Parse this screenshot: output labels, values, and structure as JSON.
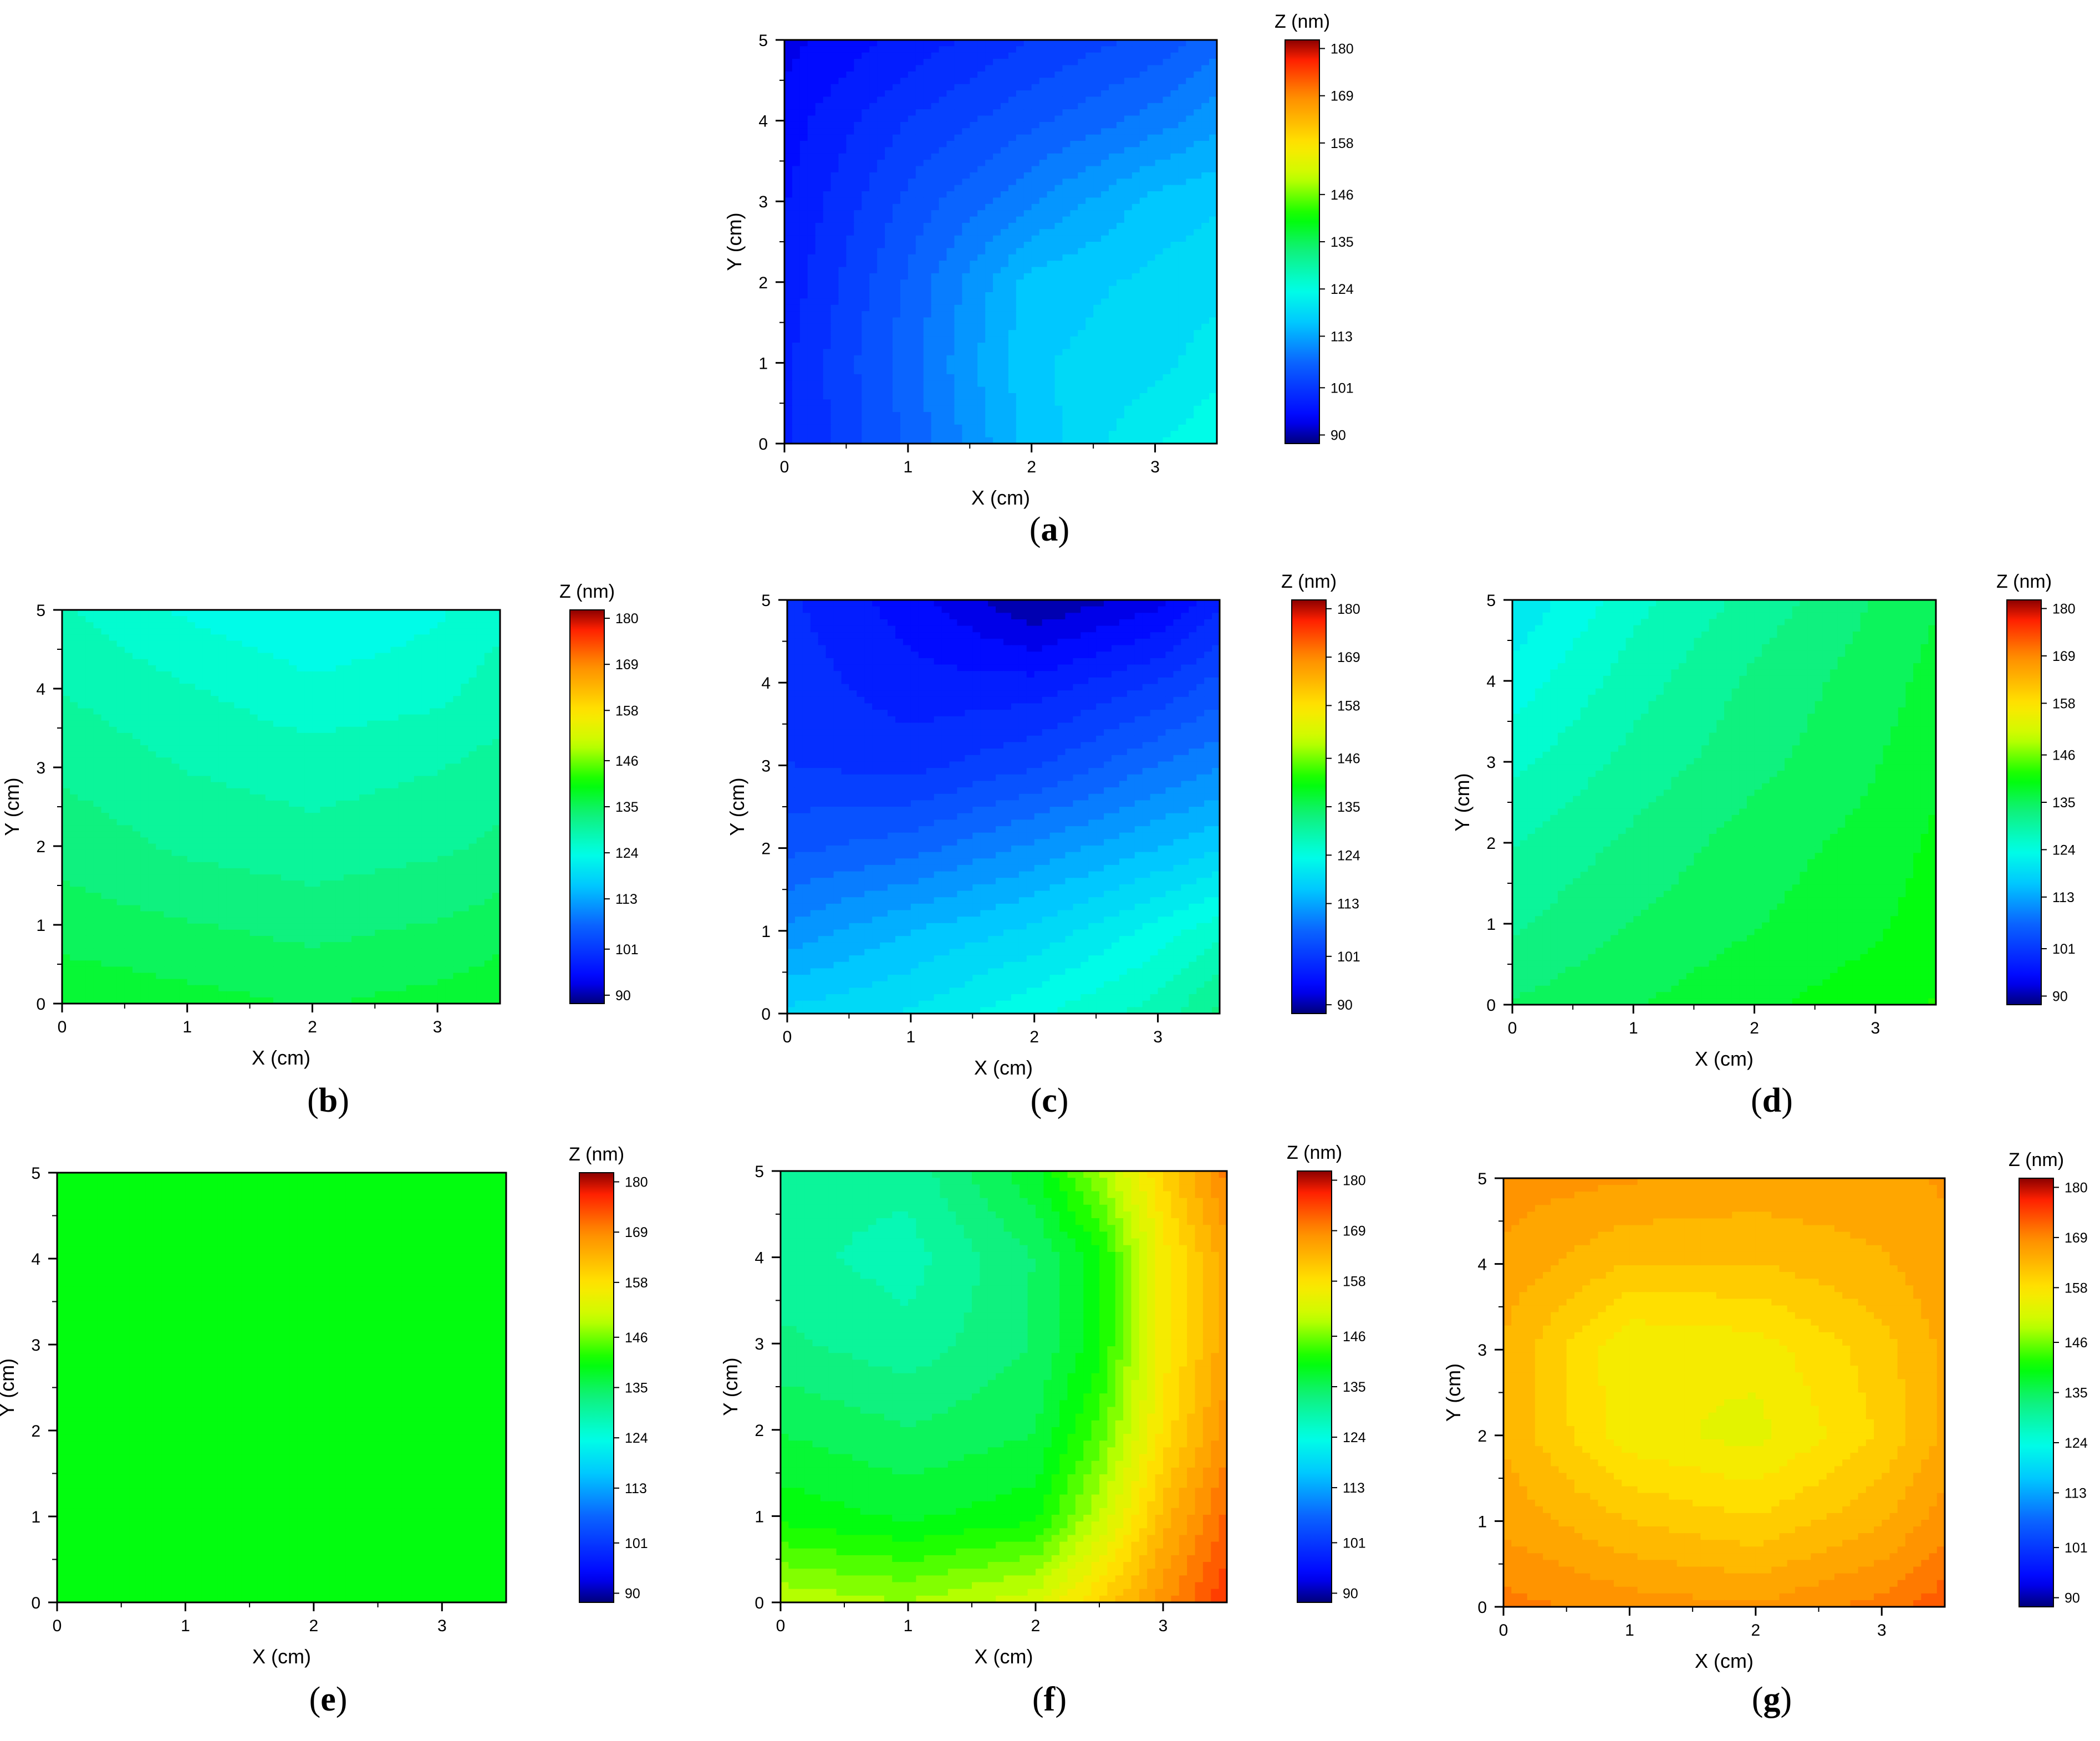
{
  "figure": {
    "panels": [
      "a",
      "b",
      "c",
      "d",
      "e",
      "f",
      "g"
    ]
  },
  "colormap": {
    "stops": [
      {
        "t": 0.0,
        "color": "#00007a"
      },
      {
        "t": 0.06,
        "color": "#0000ff"
      },
      {
        "t": 0.2,
        "color": "#0a64ff"
      },
      {
        "t": 0.3,
        "color": "#00c8ff"
      },
      {
        "t": 0.38,
        "color": "#00ffe6"
      },
      {
        "t": 0.48,
        "color": "#10f07a"
      },
      {
        "t": 0.56,
        "color": "#00ff00"
      },
      {
        "t": 0.66,
        "color": "#c8ff00"
      },
      {
        "t": 0.74,
        "color": "#ffe600"
      },
      {
        "t": 0.86,
        "color": "#ff8c00"
      },
      {
        "t": 0.95,
        "color": "#ff2000"
      },
      {
        "t": 1.0,
        "color": "#8b0000"
      }
    ]
  },
  "chart_data": [
    {
      "type": "heatmap",
      "panel_label": "(a)",
      "xlabel": "X (cm)",
      "ylabel": "Y (cm)",
      "xlim": [
        0,
        3.5
      ],
      "ylim": [
        0,
        5
      ],
      "xticks": [
        "0",
        "1",
        "2",
        "3"
      ],
      "yticks": [
        "0",
        "1",
        "2",
        "3",
        "4",
        "5"
      ],
      "colorbar": {
        "title": "Z (nm)",
        "range": [
          88,
          182
        ],
        "ticks": [
          "90",
          "101",
          "113",
          "124",
          "135",
          "146",
          "158",
          "169",
          "180"
        ]
      },
      "x": [
        0,
        1,
        2,
        3,
        3.5
      ],
      "y": [
        0,
        1,
        2,
        3,
        4,
        5
      ],
      "z": [
        [
          98,
          106,
          116,
          122,
          124
        ],
        [
          98,
          107,
          117,
          119,
          121
        ],
        [
          97,
          106,
          116,
          118,
          119
        ],
        [
          96,
          104,
          110,
          116,
          117
        ],
        [
          95,
          101,
          105,
          109,
          112
        ],
        [
          93,
          97,
          101,
          104,
          107
        ]
      ]
    },
    {
      "type": "heatmap",
      "panel_label": "(b)",
      "xlabel": "X (cm)",
      "ylabel": "Y (cm)",
      "xlim": [
        0,
        3.5
      ],
      "ylim": [
        0,
        5
      ],
      "xticks": [
        "0",
        "1",
        "2",
        "3"
      ],
      "yticks": [
        "0",
        "1",
        "2",
        "3",
        "4",
        "5"
      ],
      "colorbar": {
        "title": "Z (nm)",
        "range": [
          88,
          182
        ],
        "ticks": [
          "90",
          "101",
          "113",
          "124",
          "135",
          "146",
          "158",
          "169",
          "180"
        ]
      },
      "x": [
        0,
        1,
        2,
        3,
        3.5
      ],
      "y": [
        0,
        1,
        2,
        3,
        4,
        5
      ],
      "z": [
        [
          138,
          137,
          136,
          137,
          138
        ],
        [
          135,
          134,
          133,
          134,
          135
        ],
        [
          133,
          131,
          130,
          131,
          132
        ],
        [
          131,
          129,
          128,
          129,
          130
        ],
        [
          129,
          127,
          125,
          126,
          128
        ],
        [
          127,
          124,
          122,
          124,
          126
        ]
      ]
    },
    {
      "type": "heatmap",
      "panel_label": "(c)",
      "xlabel": "X (cm)",
      "ylabel": "Y (cm)",
      "xlim": [
        0,
        3.5
      ],
      "ylim": [
        0,
        5
      ],
      "xticks": [
        "0",
        "1",
        "2",
        "3"
      ],
      "yticks": [
        "0",
        "1",
        "2",
        "3",
        "4",
        "5"
      ],
      "colorbar": {
        "title": "Z (nm)",
        "range": [
          88,
          182
        ],
        "ticks": [
          "90",
          "101",
          "113",
          "124",
          "135",
          "146",
          "158",
          "169",
          "180"
        ]
      },
      "x": [
        0,
        1,
        2,
        3,
        3.5
      ],
      "y": [
        0,
        1,
        2,
        3,
        4,
        5
      ],
      "z": [
        [
          118,
          120,
          124,
          128,
          132
        ],
        [
          111,
          115,
          118,
          123,
          126
        ],
        [
          105,
          107,
          111,
          115,
          117
        ],
        [
          101,
          100,
          103,
          108,
          110
        ],
        [
          100,
          97,
          97,
          101,
          104
        ],
        [
          99,
          95,
          89,
          93,
          98
        ]
      ]
    },
    {
      "type": "heatmap",
      "panel_label": "(d)",
      "xlabel": "X (cm)",
      "ylabel": "Y (cm)",
      "xlim": [
        0,
        3.5
      ],
      "ylim": [
        0,
        5
      ],
      "xticks": [
        "0",
        "1",
        "2",
        "3"
      ],
      "yticks": [
        "0",
        "1",
        "2",
        "3",
        "4",
        "5"
      ],
      "colorbar": {
        "title": "Z (nm)",
        "range": [
          88,
          182
        ],
        "ticks": [
          "90",
          "101",
          "113",
          "124",
          "135",
          "146",
          "158",
          "169",
          "180"
        ]
      },
      "x": [
        0,
        1,
        2,
        3,
        3.5
      ],
      "y": [
        0,
        1,
        2,
        3,
        4,
        5
      ],
      "z": [
        [
          134,
          136,
          138,
          140,
          141
        ],
        [
          131,
          134,
          136,
          138,
          140
        ],
        [
          129,
          132,
          135,
          137,
          139
        ],
        [
          126,
          130,
          133,
          136,
          138
        ],
        [
          123,
          128,
          132,
          135,
          137
        ],
        [
          120,
          126,
          130,
          134,
          136
        ]
      ]
    },
    {
      "type": "heatmap",
      "panel_label": "(e)",
      "xlabel": "X (cm)",
      "ylabel": "Y (cm)",
      "xlim": [
        0,
        3.5
      ],
      "ylim": [
        0,
        5
      ],
      "xticks": [
        "0",
        "1",
        "2",
        "3"
      ],
      "yticks": [
        "0",
        "1",
        "2",
        "3",
        "4",
        "5"
      ],
      "colorbar": {
        "title": "Z (nm)",
        "range": [
          88,
          182
        ],
        "ticks": [
          "90",
          "101",
          "113",
          "124",
          "135",
          "146",
          "158",
          "169",
          "180"
        ]
      },
      "x": [
        0,
        1,
        2,
        3,
        3.5
      ],
      "y": [
        0,
        1,
        2,
        3,
        4,
        5
      ],
      "z": [
        [
          140,
          140,
          140,
          140,
          140
        ],
        [
          140,
          140,
          140,
          140,
          140
        ],
        [
          140,
          140,
          140,
          140,
          140
        ],
        [
          140,
          140,
          140,
          140,
          140
        ],
        [
          140,
          140,
          140,
          140,
          140
        ],
        [
          140,
          140,
          140,
          140,
          140
        ]
      ]
    },
    {
      "type": "heatmap",
      "panel_label": "(f)",
      "xlabel": "X (cm)",
      "ylabel": "Y (cm)",
      "xlim": [
        0,
        3.5
      ],
      "ylim": [
        0,
        5
      ],
      "xticks": [
        "0",
        "1",
        "2",
        "3"
      ],
      "yticks": [
        "0",
        "1",
        "2",
        "3",
        "4",
        "5"
      ],
      "colorbar": {
        "title": "Z (nm)",
        "range": [
          88,
          182
        ],
        "ticks": [
          "90",
          "101",
          "113",
          "124",
          "135",
          "146",
          "158",
          "169",
          "180"
        ]
      },
      "x": [
        0,
        1,
        2,
        2.5,
        3,
        3.5
      ],
      "y": [
        0,
        1,
        2,
        3,
        4,
        5
      ],
      "z": [
        [
          150,
          148,
          152,
          160,
          168,
          176
        ],
        [
          140,
          138,
          140,
          150,
          163,
          172
        ],
        [
          136,
          134,
          136,
          144,
          158,
          168
        ],
        [
          132,
          130,
          134,
          140,
          156,
          166
        ],
        [
          130,
          128,
          134,
          140,
          156,
          166
        ],
        [
          130,
          130,
          138,
          148,
          160,
          170
        ]
      ]
    },
    {
      "type": "heatmap",
      "panel_label": "(g)",
      "xlabel": "X (cm)",
      "ylabel": "Y (cm)",
      "xlim": [
        0,
        3.5
      ],
      "ylim": [
        0,
        5
      ],
      "xticks": [
        "0",
        "1",
        "2",
        "3"
      ],
      "yticks": [
        "0",
        "1",
        "2",
        "3",
        "4",
        "5"
      ],
      "colorbar": {
        "title": "Z (nm)",
        "range": [
          88,
          182
        ],
        "ticks": [
          "90",
          "101",
          "113",
          "124",
          "135",
          "146",
          "158",
          "169",
          "180"
        ]
      },
      "x": [
        0,
        1,
        2,
        3,
        3.5
      ],
      "y": [
        0,
        1,
        2,
        3,
        4,
        5
      ],
      "z": [
        [
          170,
          168,
          167,
          170,
          173
        ],
        [
          166,
          162,
          160,
          164,
          168
        ],
        [
          164,
          156,
          154,
          160,
          165
        ],
        [
          164,
          155,
          156,
          161,
          165
        ],
        [
          166,
          162,
          162,
          164,
          166
        ],
        [
          168,
          167,
          166,
          166,
          167
        ]
      ]
    }
  ]
}
